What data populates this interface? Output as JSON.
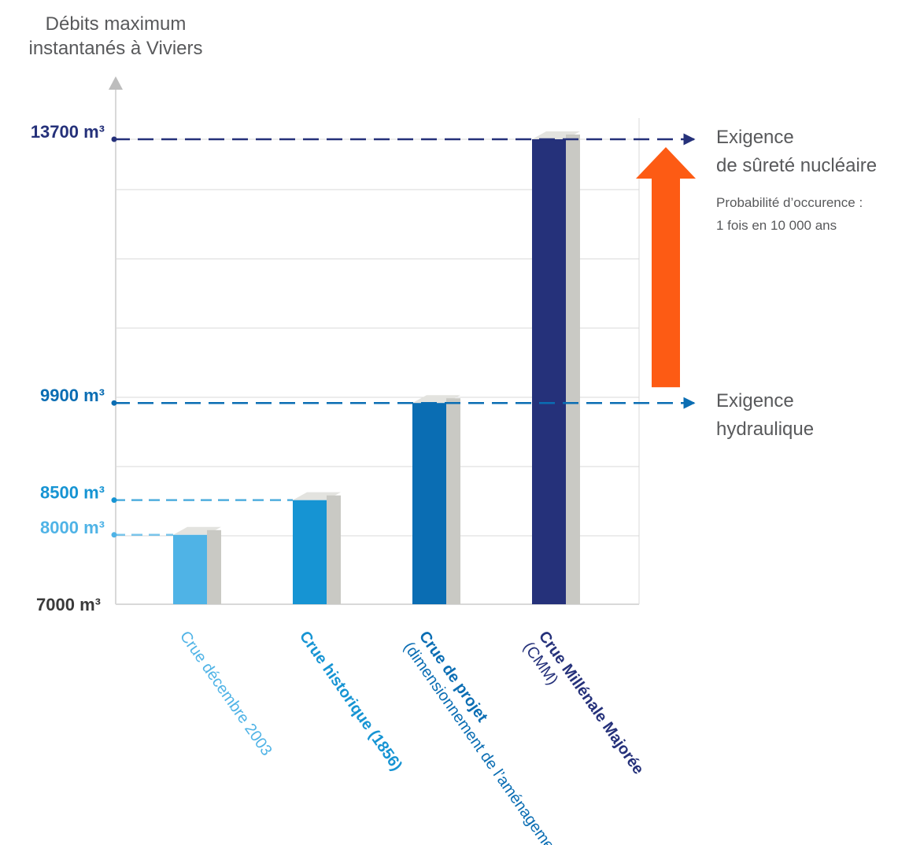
{
  "chart_data": {
    "type": "bar",
    "ylabel_lines": [
      "Débits maximum",
      "instantanés à Viviers"
    ],
    "ylim": [
      7000,
      13700
    ],
    "grid": true,
    "categories": [
      {
        "lines": [
          {
            "text": "Crue décembre 2003",
            "bold": false
          }
        ],
        "color": "#4fb3e6"
      },
      {
        "lines": [
          {
            "text": "Crue historique (1856)",
            "bold": true
          }
        ],
        "color": "#1694d3"
      },
      {
        "lines": [
          {
            "text": "Crue de projet",
            "bold": true
          },
          {
            "text": "(dimensionnement de l’aménagement)",
            "bold": false
          }
        ],
        "color": "#0a6db3"
      },
      {
        "lines": [
          {
            "text": "Crue Millénale Majorée",
            "bold": true
          },
          {
            "text": "(CMM)",
            "bold": false
          }
        ],
        "color": "#25317a"
      }
    ],
    "values": [
      8000,
      8500,
      9900,
      13700
    ],
    "value_labels": [
      {
        "text": "8000 m³",
        "value": 8000,
        "color": "#4fb3e6"
      },
      {
        "text": "8500 m³",
        "value": 8500,
        "color": "#1694d3"
      },
      {
        "text": "9900 m³",
        "value": 9900,
        "color": "#0a6db3"
      },
      {
        "text": "13700 m³",
        "value": 13700,
        "color": "#25317a"
      }
    ],
    "baseline_label": "7000 m³",
    "reference_lines": [
      {
        "value": 9900,
        "color": "#0a6db3",
        "lines": [
          "Exigence",
          "hydraulique"
        ]
      },
      {
        "value": 13700,
        "color": "#25317a",
        "lines": [
          "Exigence",
          "de sûreté nucléaire"
        ],
        "note_lines": [
          "Probabilité d’occurence :",
          "1 fois en 10 000 ans"
        ]
      }
    ],
    "highlight_arrow": {
      "from": 9900,
      "to": 13700,
      "color": "#fd5b14"
    },
    "colors": {
      "text": "#58595b",
      "grid": "#d9d9d9",
      "bar_shadow": "#c9c9c4"
    }
  }
}
